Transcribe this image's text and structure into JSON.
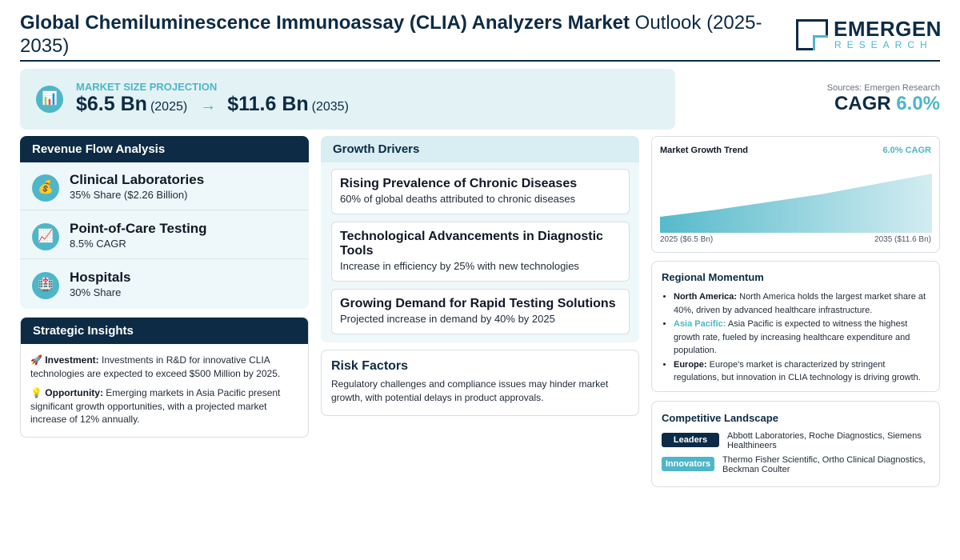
{
  "header": {
    "title_bold": "Global Chemiluminescence Immunoassay (CLIA) Analyzers Market",
    "title_rest": " Outlook (2025-2035)",
    "logo_main": "EMERGEN",
    "logo_sub": "RESEARCH"
  },
  "projection": {
    "label": "MARKET SIZE PROJECTION",
    "icon": "bar-chart-icon",
    "start_value": "$6.5 Bn",
    "start_year": "(2025)",
    "arrow": "→",
    "end_value": "$11.6 Bn",
    "end_year": "(2035)"
  },
  "summary": {
    "sources": "Sources: Emergen Research",
    "cagr_label": "CAGR",
    "cagr_value": "6.0%"
  },
  "revenue": {
    "title": "Revenue Flow Analysis",
    "items": [
      {
        "icon": "money-bag-icon",
        "glyph": "💰",
        "title": "Clinical Laboratories",
        "sub": "35% Share ($2.26 Billion)"
      },
      {
        "icon": "trend-up-icon",
        "glyph": "📈",
        "title": "Point-of-Care Testing",
        "sub": "8.5% CAGR"
      },
      {
        "icon": "hospital-icon",
        "glyph": "🏥",
        "title": "Hospitals",
        "sub": "30% Share"
      }
    ]
  },
  "strategic": {
    "title": "Strategic Insights",
    "investment_icon": "🚀",
    "investment_label": "Investment:",
    "investment_text": " Investments in R&D for innovative CLIA technologies are expected to exceed $500 Million by 2025.",
    "opportunity_icon": "💡",
    "opportunity_label": "Opportunity:",
    "opportunity_text": " Emerging markets in Asia Pacific present significant growth opportunities, with a projected market increase of 12% annually."
  },
  "growth": {
    "title": "Growth Drivers",
    "drivers": [
      {
        "title": "Rising Prevalence of Chronic Diseases",
        "sub": "60% of global deaths attributed to chronic diseases"
      },
      {
        "title": "Technological Advancements in Diagnostic Tools",
        "sub": "Increase in efficiency by 25% with new technologies"
      },
      {
        "title": "Growing Demand for Rapid Testing Solutions",
        "sub": "Projected increase in demand by 40% by 2025"
      }
    ]
  },
  "risk": {
    "title": "Risk Factors",
    "body": "Regulatory challenges and compliance issues may hinder market growth, with potential delays in product approvals."
  },
  "trend": {
    "title": "Market Growth Trend",
    "cagr": "6.0% CAGR",
    "start_label": "2025 ($6.5 Bn)",
    "end_label": "2035 ($11.6 Bn)"
  },
  "chart_data": {
    "type": "area",
    "x": [
      "2025",
      "2035"
    ],
    "series": [
      {
        "values": [
          6.5,
          11.6
        ]
      }
    ]
  },
  "regional": {
    "title": "Regional Momentum",
    "items": [
      {
        "region": "North America:",
        "text": " North America holds the largest market share at 40%, driven by advanced healthcare infrastructure."
      },
      {
        "region": "Asia Pacific:",
        "text": " Asia Pacific is expected to witness the highest growth rate, fueled by increasing healthcare expenditure and population."
      },
      {
        "region": "Europe:",
        "text": " Europe's market is characterized by stringent regulations, but innovation in CLIA technology is driving growth."
      }
    ]
  },
  "competitive": {
    "title": "Competitive Landscape",
    "leaders_label": "Leaders",
    "leaders": "Abbott Laboratories, Roche Diagnostics, Siemens Healthineers",
    "innovators_label": "Innovators",
    "innovators": "Thermo Fisher Scientific, Ortho Clinical Diagnostics, Beckman Coulter"
  },
  "colors": {
    "navy": "#0d2b45",
    "teal": "#4db6c8",
    "panel": "#eef7f9"
  }
}
